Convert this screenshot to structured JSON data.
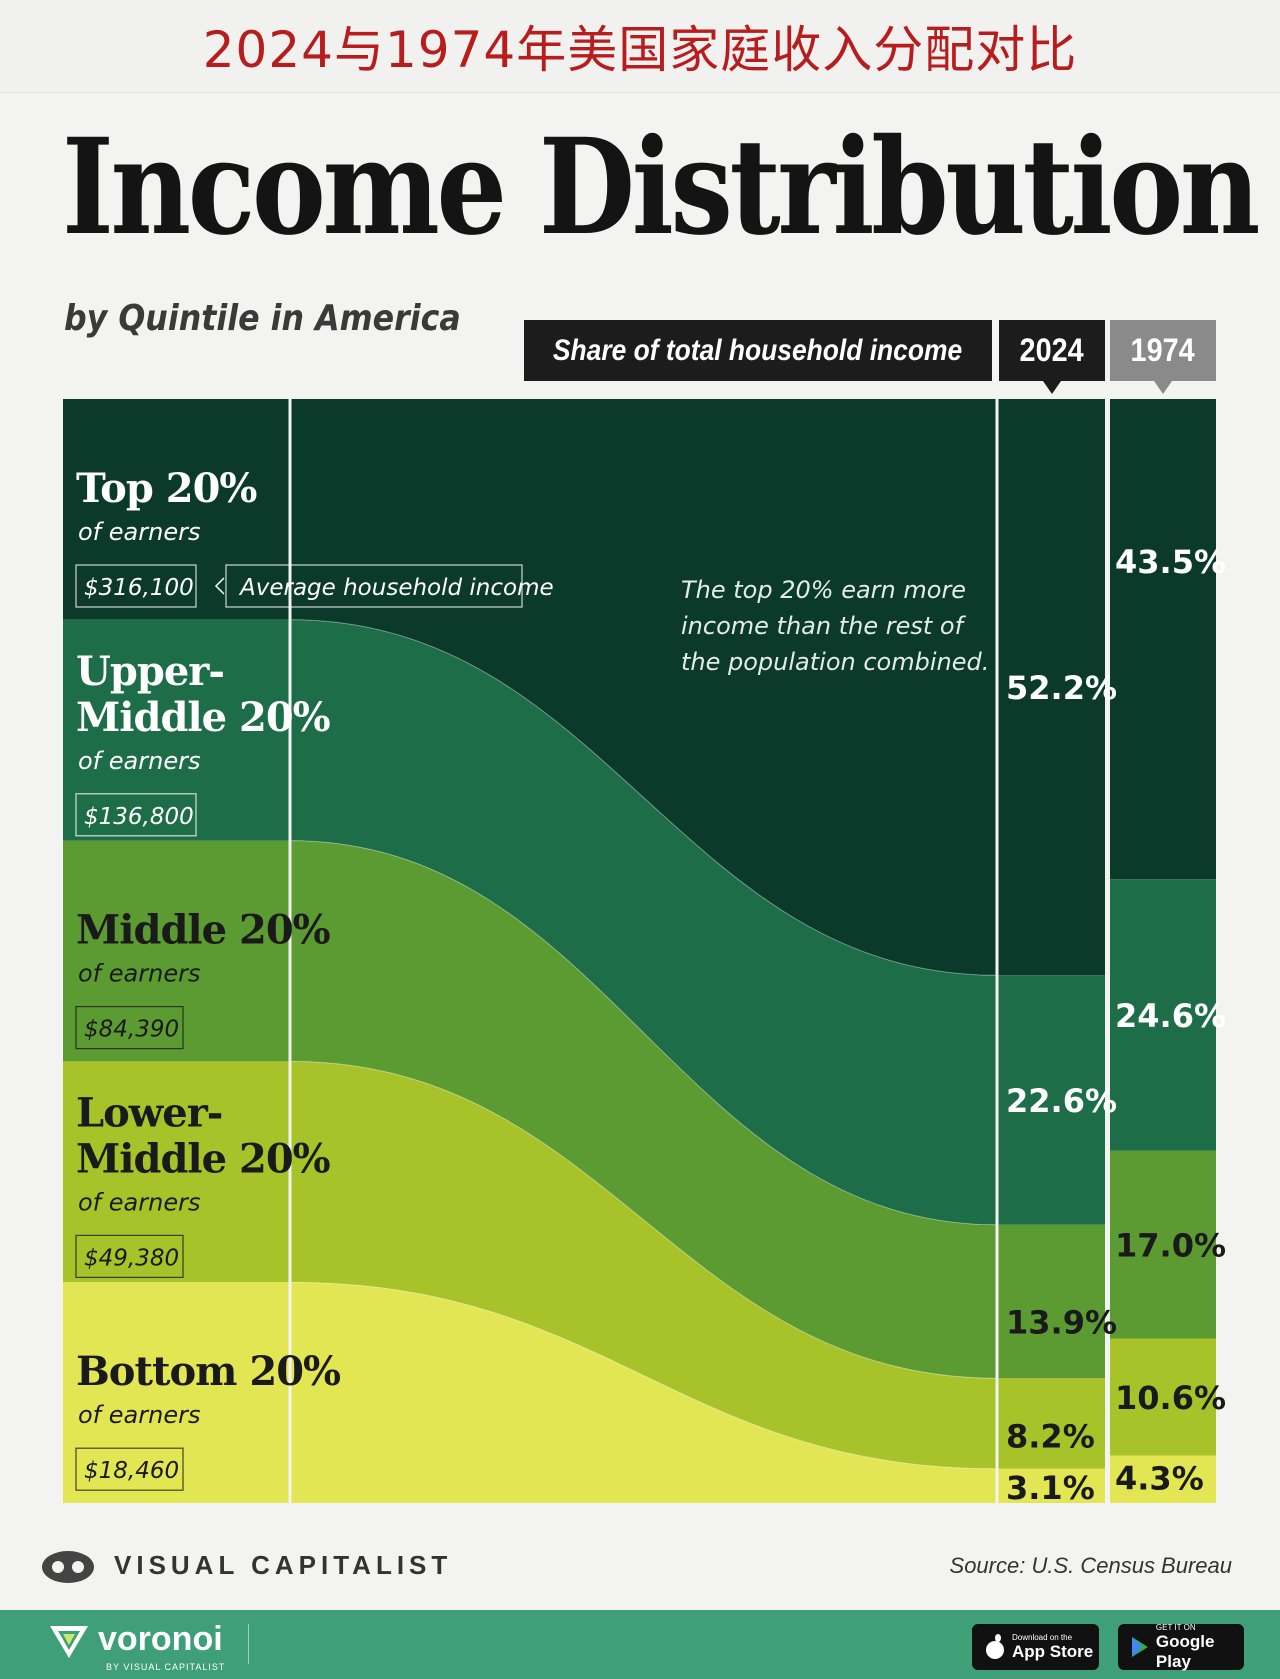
{
  "banner": {
    "title": "2024与1974年美国家庭收入分配对比"
  },
  "header": {
    "title": "Income Distribution",
    "subtitle": "by Quintile in America",
    "share_label": "Share of total household income"
  },
  "annotations": {
    "avg_income_label": "Average household income",
    "top_note_lines": [
      "The top 20% earn more",
      "income than the rest of",
      "the population combined."
    ]
  },
  "chart_data": {
    "type": "area",
    "title": "Income Distribution",
    "subtitle": "by Quintile in America",
    "ylabel": "Share of total household income",
    "x": [
      "2024",
      "1974"
    ],
    "quintiles": [
      {
        "name": [
          "Top 20%"
        ],
        "sub": "of earners",
        "avg_income": "$316,100",
        "share_2024": 52.2,
        "share_1974": 43.5,
        "label_2024": "52.2%",
        "label_1974": "43.5%",
        "color": "#0b3a2b"
      },
      {
        "name": [
          "Upper-",
          "Middle 20%"
        ],
        "sub": "of earners",
        "avg_income": "$136,800",
        "share_2024": 22.6,
        "share_1974": 24.6,
        "label_2024": "22.6%",
        "label_1974": "24.6%",
        "color": "#1c6d48"
      },
      {
        "name": [
          "Middle 20%"
        ],
        "sub": "of earners",
        "avg_income": "$84,390",
        "share_2024": 13.9,
        "share_1974": 17.0,
        "label_2024": "13.9%",
        "label_1974": "17.0%",
        "color": "#5c9a32"
      },
      {
        "name": [
          "Lower-",
          "Middle 20%"
        ],
        "sub": "of earners",
        "avg_income": "$49,380",
        "share_2024": 8.2,
        "share_1974": 10.6,
        "label_2024": "8.2%",
        "label_1974": "10.6%",
        "color": "#a8c22a"
      },
      {
        "name": [
          "Bottom 20%"
        ],
        "sub": "of earners",
        "avg_income": "$18,460",
        "share_2024": 3.1,
        "share_1974": 4.3,
        "label_2024": "3.1%",
        "label_1974": "4.3%",
        "color": "#e2e653"
      }
    ]
  },
  "footer": {
    "brand": "VISUAL CAPITALIST",
    "source": "Source: U.S. Census Bureau",
    "app_name": "voronoi",
    "app_sub": "BY VISUAL CAPITALIST",
    "appstore_small": "Download on the",
    "appstore_big": "App Store",
    "googleplay_small": "GET IT ON",
    "googleplay_big": "Google Play"
  }
}
